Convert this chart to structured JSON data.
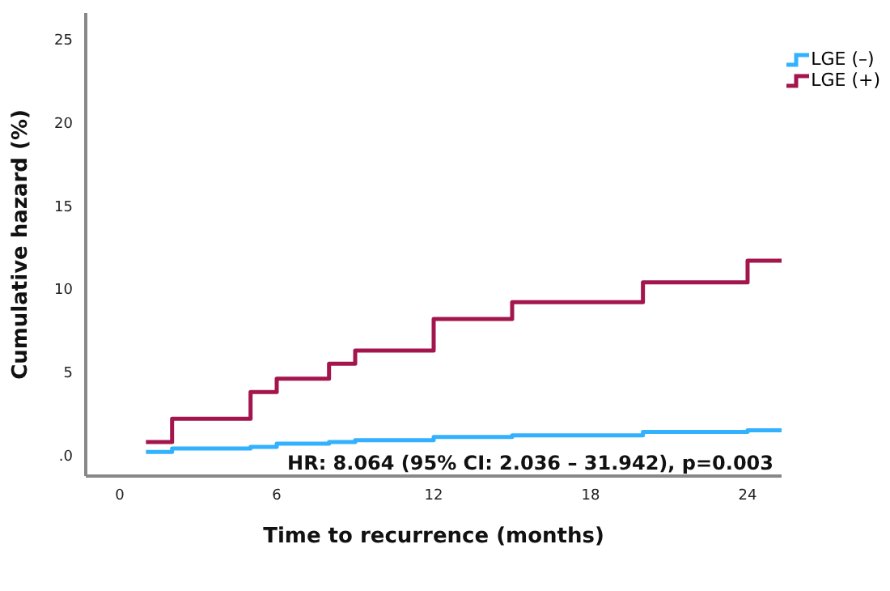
{
  "chart_data": {
    "type": "step",
    "xlabel": "Time to recurrence (months)",
    "ylabel": "Cumulative hazard (%)",
    "xlim": [
      -1.3,
      25.3
    ],
    "xticks": [
      0,
      6,
      12,
      18,
      24
    ],
    "ylim": [
      -1.25,
      26.6
    ],
    "yticks": [
      {
        "value": 0,
        "label": ".0"
      },
      5,
      10,
      15,
      20,
      25
    ],
    "legend": "top right",
    "annotations": [
      "HR: 8.064 (95% CI: 2.036 – 31.942), p=0.003"
    ],
    "series": [
      {
        "name": "LGE (–)",
        "color": "#33b1ff",
        "x": [
          1,
          2,
          5,
          6,
          8,
          9,
          12,
          15,
          20,
          24,
          25.3
        ],
        "values": [
          0.2,
          0.4,
          0.5,
          0.7,
          0.8,
          0.9,
          1.1,
          1.2,
          1.4,
          1.5,
          1.5
        ]
      },
      {
        "name": "LGE (+)",
        "color": "#a3164d",
        "x": [
          1,
          2,
          5,
          6,
          8,
          9,
          12,
          15,
          20,
          24,
          25.3
        ],
        "values": [
          0.8,
          2.2,
          3.8,
          4.6,
          5.5,
          6.3,
          8.2,
          9.2,
          10.4,
          11.7,
          11.7
        ]
      }
    ]
  }
}
